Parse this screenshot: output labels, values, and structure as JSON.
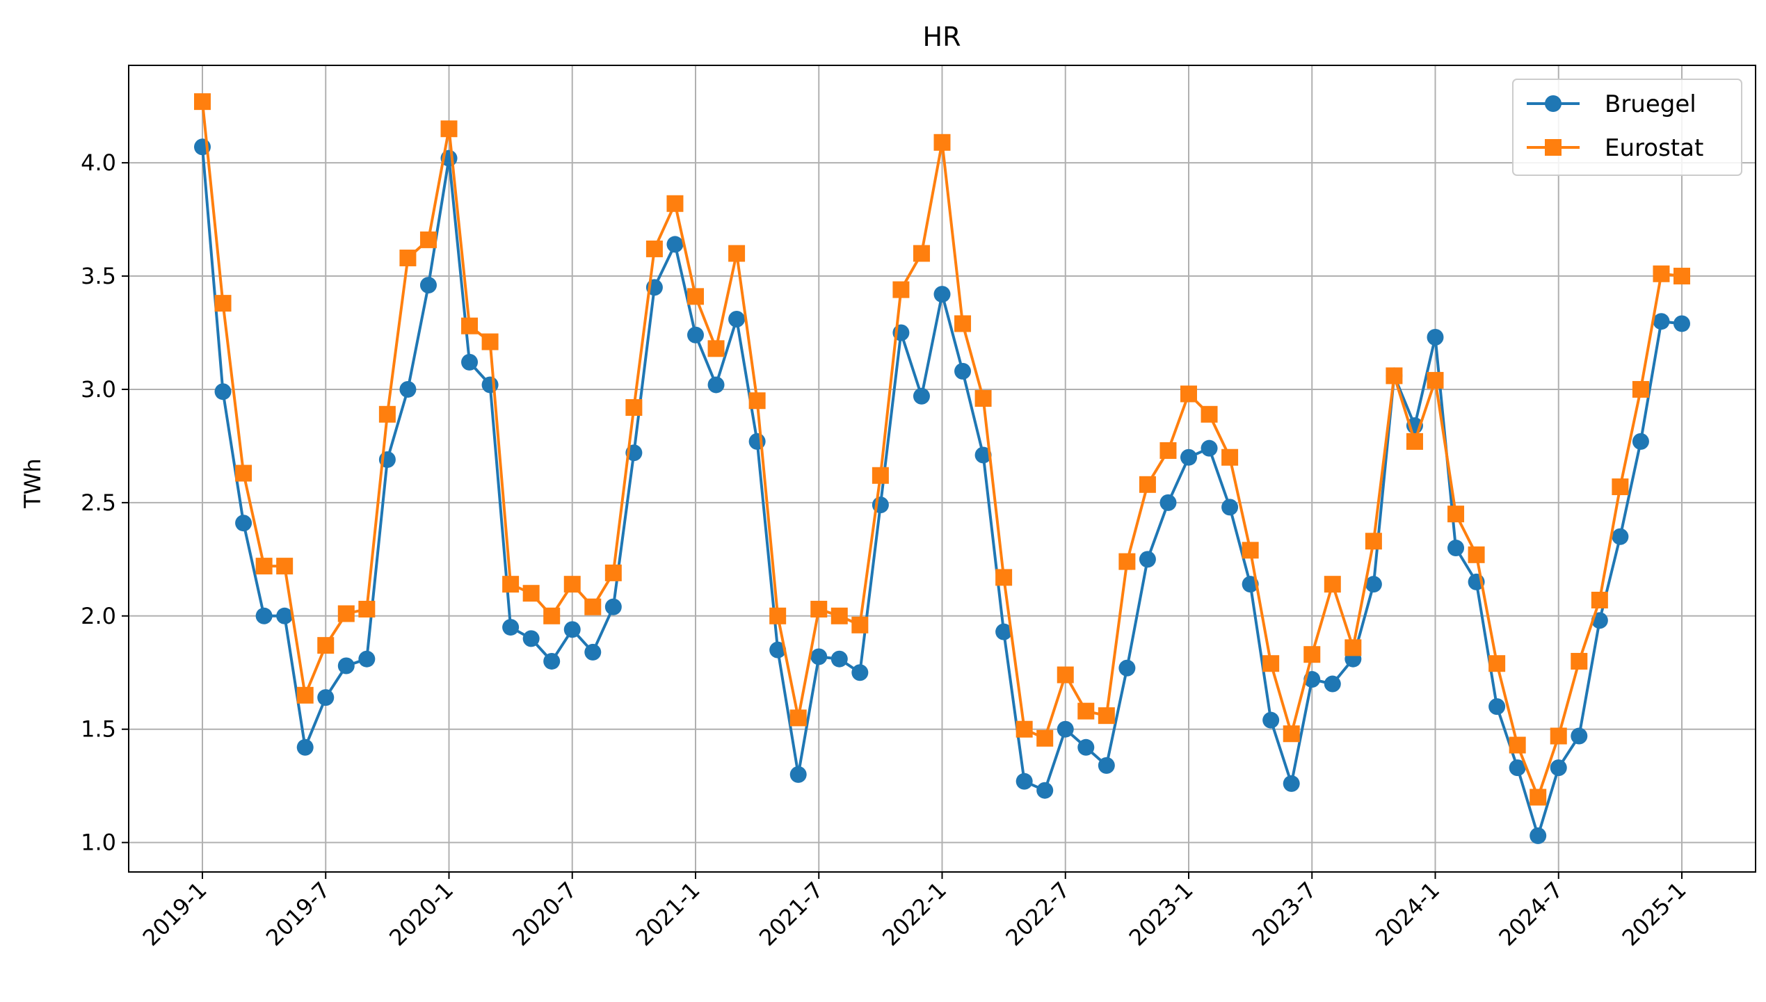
{
  "chart_data": {
    "type": "line",
    "title": "HR",
    "xlabel": "",
    "ylabel": "TWh",
    "ylim": [
      0.87,
      4.43
    ],
    "yticks": [
      "1.0",
      "1.5",
      "2.0",
      "2.5",
      "3.0",
      "3.5",
      "4.0"
    ],
    "xticks": [
      "2019-1",
      "2019-7",
      "2020-1",
      "2020-7",
      "2021-1",
      "2021-7",
      "2022-1",
      "2022-7",
      "2023-1",
      "2023-7",
      "2024-1",
      "2024-7",
      "2025-1"
    ],
    "grid": true,
    "legend_position": "top-right",
    "x": [
      "2019-1",
      "2019-2",
      "2019-3",
      "2019-4",
      "2019-5",
      "2019-6",
      "2019-7",
      "2019-8",
      "2019-9",
      "2019-10",
      "2019-11",
      "2019-12",
      "2020-1",
      "2020-2",
      "2020-3",
      "2020-4",
      "2020-5",
      "2020-6",
      "2020-7",
      "2020-8",
      "2020-9",
      "2020-10",
      "2020-11",
      "2020-12",
      "2021-1",
      "2021-2",
      "2021-3",
      "2021-4",
      "2021-5",
      "2021-6",
      "2021-7",
      "2021-8",
      "2021-9",
      "2021-10",
      "2021-11",
      "2021-12",
      "2022-1",
      "2022-2",
      "2022-3",
      "2022-4",
      "2022-5",
      "2022-6",
      "2022-7",
      "2022-8",
      "2022-9",
      "2022-10",
      "2022-11",
      "2022-12",
      "2023-1",
      "2023-2",
      "2023-3",
      "2023-4",
      "2023-5",
      "2023-6",
      "2023-7",
      "2023-8",
      "2023-9",
      "2023-10",
      "2023-11",
      "2023-12",
      "2024-1",
      "2024-2",
      "2024-3",
      "2024-4",
      "2024-5",
      "2024-6",
      "2024-7",
      "2024-8",
      "2024-9",
      "2024-10",
      "2024-11",
      "2024-12",
      "2025-1"
    ],
    "series": [
      {
        "name": "Bruegel",
        "color": "#1f77b4",
        "marker": "circle",
        "values": [
          4.07,
          2.99,
          2.41,
          2.0,
          2.0,
          1.42,
          1.64,
          1.78,
          1.81,
          2.69,
          3.0,
          3.46,
          4.02,
          3.12,
          3.02,
          1.95,
          1.9,
          1.8,
          1.94,
          1.84,
          2.04,
          2.72,
          3.45,
          3.64,
          3.24,
          3.02,
          3.31,
          2.77,
          1.85,
          1.3,
          1.82,
          1.81,
          1.75,
          2.49,
          3.25,
          2.97,
          3.42,
          3.08,
          2.71,
          1.93,
          1.27,
          1.23,
          1.5,
          1.42,
          1.34,
          1.77,
          2.25,
          2.5,
          2.7,
          2.74,
          2.48,
          2.14,
          1.54,
          1.26,
          1.72,
          1.7,
          1.81,
          2.14,
          3.06,
          2.84,
          3.23,
          2.3,
          2.15,
          1.6,
          1.33,
          1.03,
          1.33,
          1.47,
          1.98,
          2.35,
          2.77,
          3.3,
          3.29
        ]
      },
      {
        "name": "Eurostat",
        "color": "#ff7f0e",
        "marker": "square",
        "values": [
          4.27,
          3.38,
          2.63,
          2.22,
          2.22,
          1.65,
          1.87,
          2.01,
          2.03,
          2.89,
          3.58,
          3.66,
          4.15,
          3.28,
          3.21,
          2.14,
          2.1,
          2.0,
          2.14,
          2.04,
          2.19,
          2.92,
          3.62,
          3.82,
          3.41,
          3.18,
          3.6,
          2.95,
          2.0,
          1.55,
          2.03,
          2.0,
          1.96,
          2.62,
          3.44,
          3.6,
          4.09,
          3.29,
          2.96,
          2.17,
          1.5,
          1.46,
          1.74,
          1.58,
          1.56,
          2.24,
          2.58,
          2.73,
          2.98,
          2.89,
          2.7,
          2.29,
          1.79,
          1.48,
          1.83,
          2.14,
          1.86,
          2.33,
          3.06,
          2.77,
          3.04,
          2.45,
          2.27,
          1.79,
          1.43,
          1.2,
          1.47,
          1.8,
          2.07,
          2.57,
          3.0,
          3.51,
          3.5
        ]
      }
    ]
  }
}
